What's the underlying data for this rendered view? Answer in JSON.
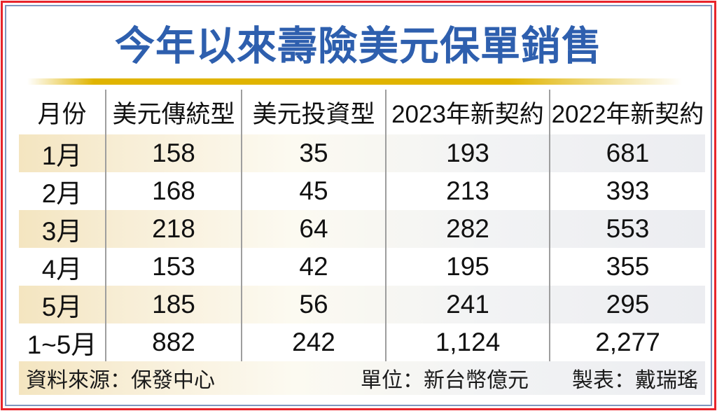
{
  "title": "今年以來壽險美元保單銷售",
  "colors": {
    "title_blue": "#2e5fae",
    "gold_bar": "#e0b400",
    "outer_border_red": "#e8242b",
    "inner_border_blue": "#7f96be",
    "odd_row_cream": "#f4e5c0",
    "column_divider_gray": "#9e9e9e"
  },
  "table": {
    "headers": [
      "月份",
      "美元傳統型",
      "美元投資型",
      "2023年新契約",
      "2022年新契約"
    ],
    "rows": [
      {
        "month": "1月",
        "values": [
          "158",
          "35",
          "193",
          "681"
        ]
      },
      {
        "month": "2月",
        "values": [
          "168",
          "45",
          "213",
          "393"
        ]
      },
      {
        "month": "3月",
        "values": [
          "218",
          "64",
          "282",
          "553"
        ]
      },
      {
        "month": "4月",
        "values": [
          "153",
          "42",
          "195",
          "355"
        ]
      },
      {
        "month": "5月",
        "values": [
          "185",
          "56",
          "241",
          "295"
        ]
      },
      {
        "month": "1~5月",
        "values": [
          "882",
          "242",
          "1,124",
          "2,277"
        ]
      }
    ]
  },
  "footer": {
    "source": "資料來源：保發中心",
    "unit": "單位：新台幣億元",
    "credit": "製表：戴瑞瑤"
  },
  "chart_data": {
    "type": "table",
    "title": "今年以來壽險美元保單銷售",
    "columns": [
      "月份",
      "美元傳統型",
      "美元投資型",
      "2023年新契約",
      "2022年新契約"
    ],
    "rows": [
      [
        "1月",
        158,
        35,
        193,
        681
      ],
      [
        "2月",
        168,
        45,
        213,
        393
      ],
      [
        "3月",
        218,
        64,
        282,
        553
      ],
      [
        "4月",
        153,
        42,
        195,
        355
      ],
      [
        "5月",
        185,
        56,
        241,
        295
      ],
      [
        "1~5月",
        882,
        242,
        1124,
        2277
      ]
    ],
    "unit": "新台幣億元",
    "source": "保發中心",
    "credit": "戴瑞瑤"
  }
}
